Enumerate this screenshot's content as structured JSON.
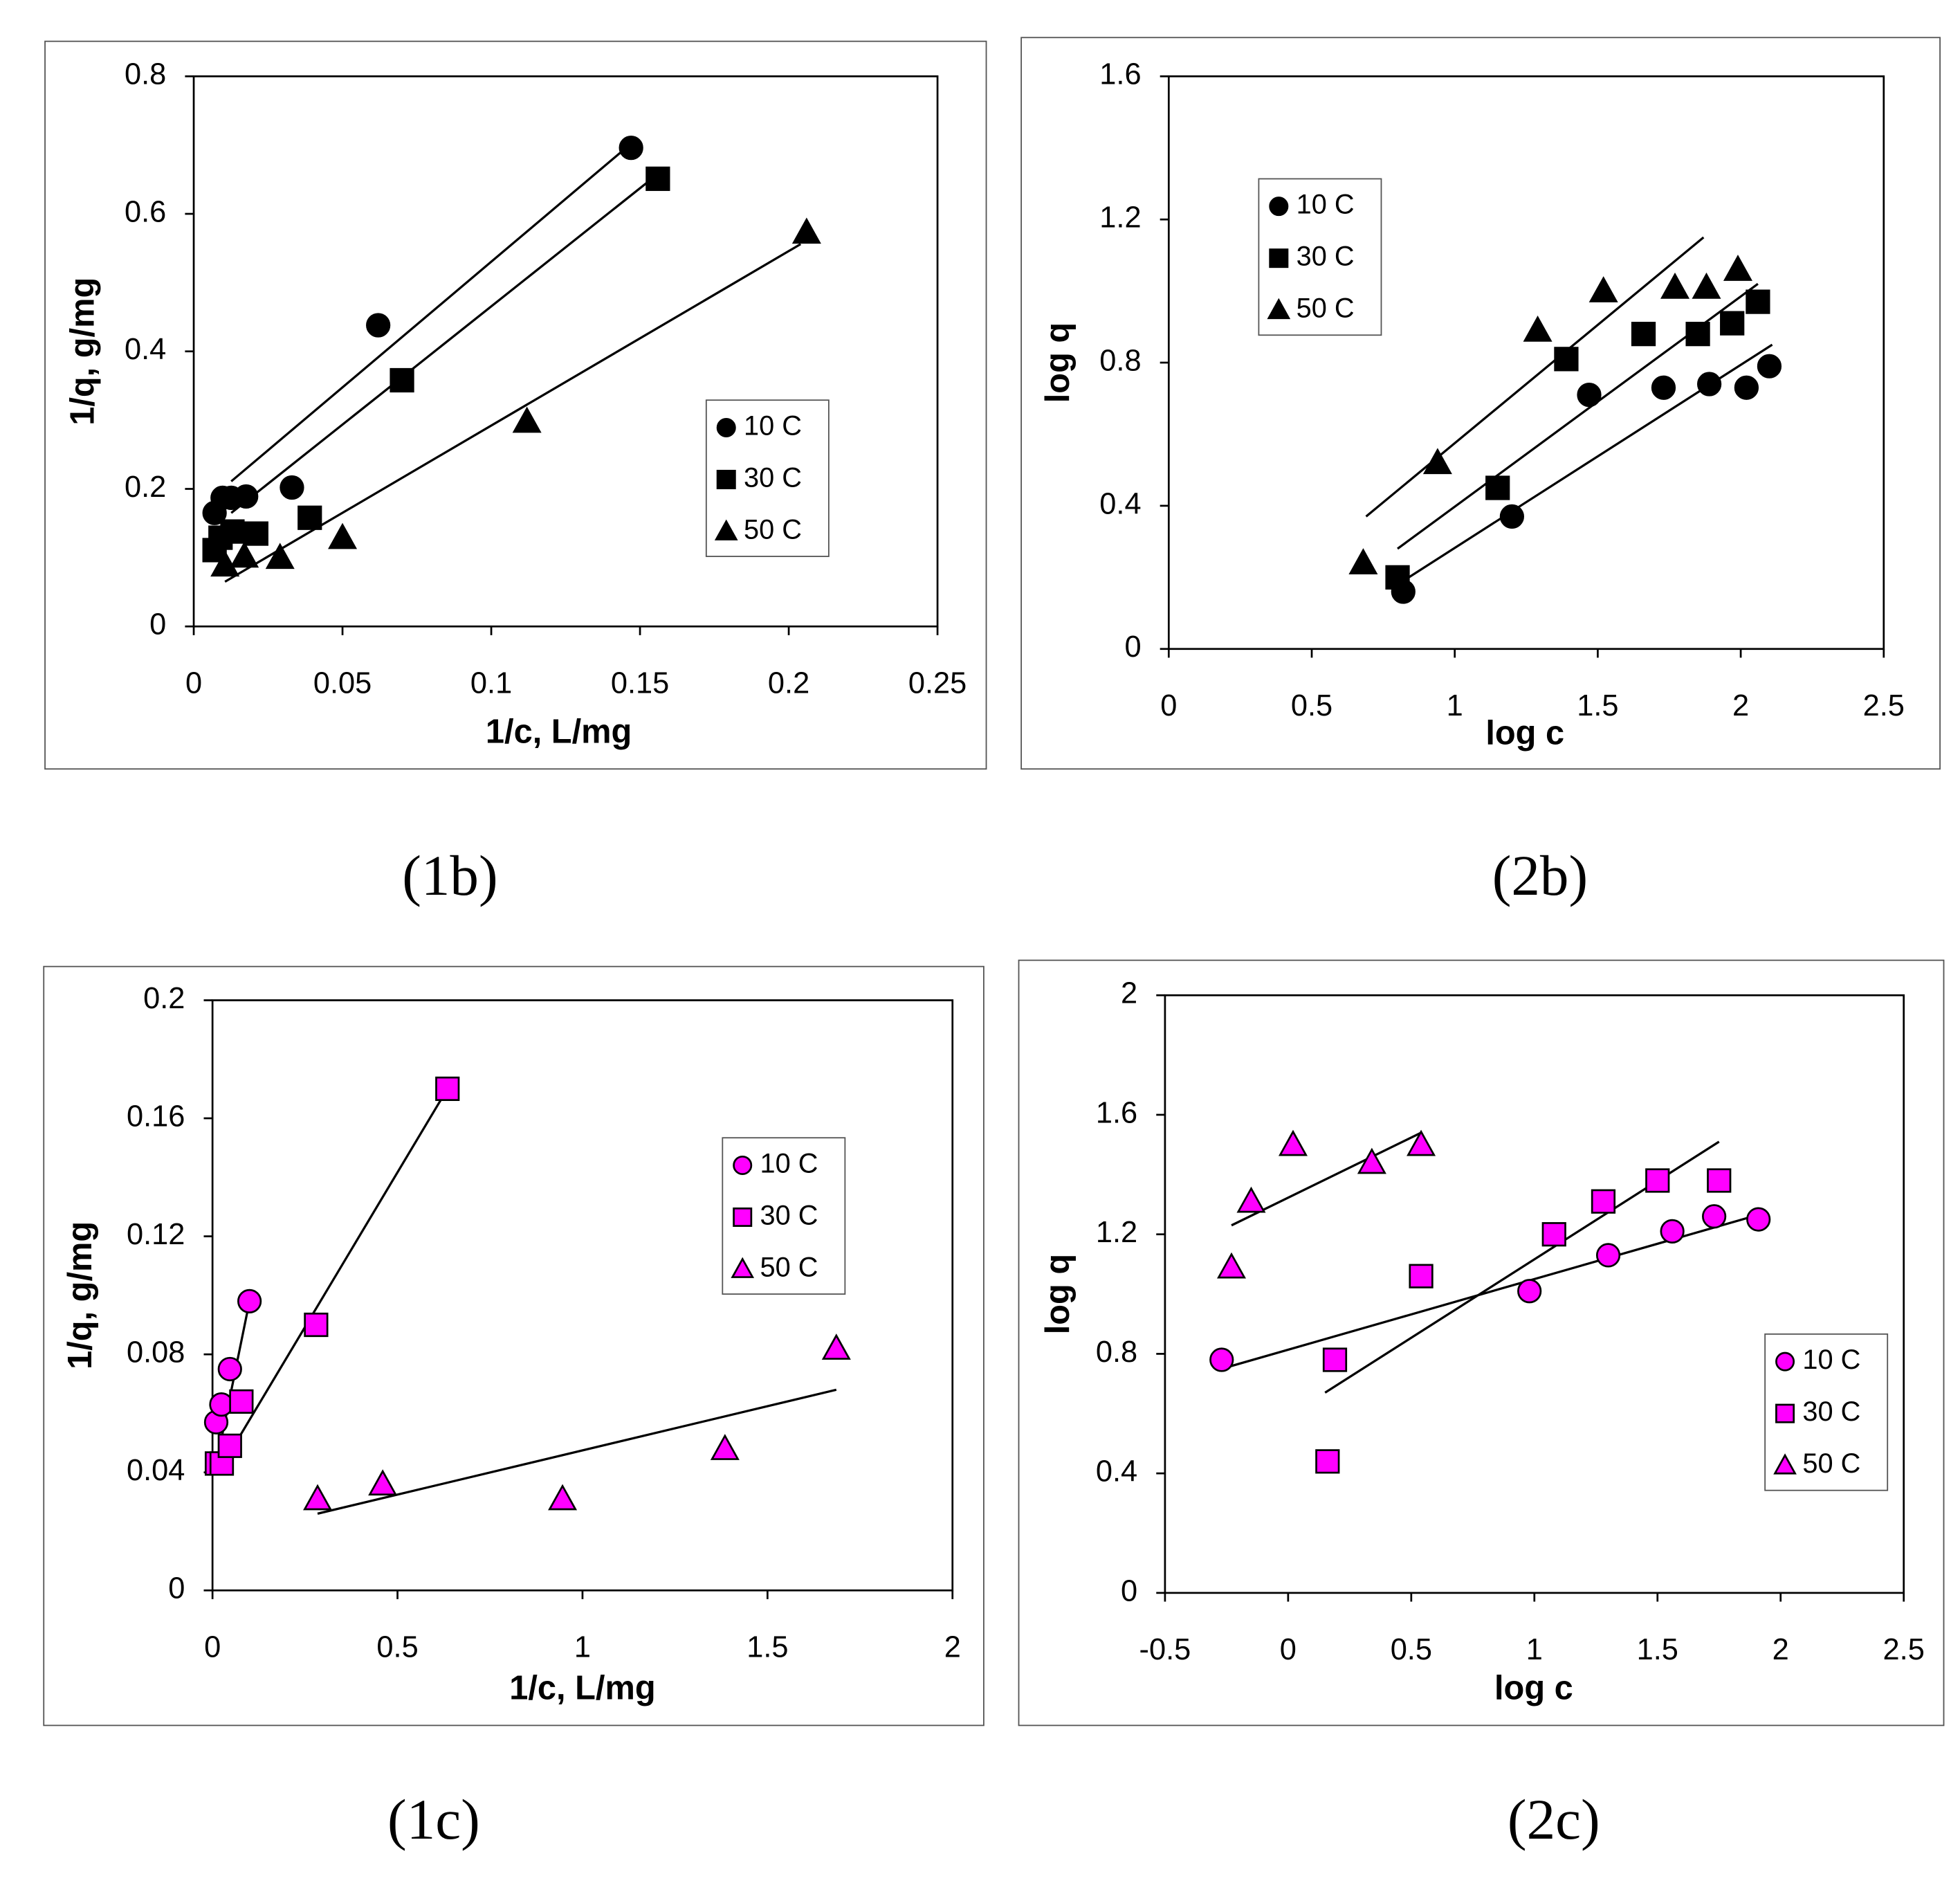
{
  "chart_data": [
    {
      "type": "scatter",
      "caption": "(1b)",
      "xlabel": "1/c, L/mg",
      "ylabel": "1/q, g/mg",
      "xlim": [
        0,
        0.25
      ],
      "ylim": [
        0,
        0.8
      ],
      "xticks": [
        0,
        0.05,
        0.1,
        0.15,
        0.2,
        0.25
      ],
      "yticks": [
        0,
        0.2,
        0.4,
        0.6,
        0.8
      ],
      "legend": "center right",
      "series": [
        {
          "name": "10 C",
          "marker": "circle",
          "color": "#000000",
          "edgecolor": "#000000",
          "x": [
            0.007,
            0.0097,
            0.0126,
            0.0176,
            0.033,
            0.062,
            0.147
          ],
          "values": [
            0.165,
            0.187,
            0.187,
            0.189,
            0.202,
            0.438,
            0.696
          ],
          "fit": {
            "x": [
              0.0126,
              0.1445
            ],
            "y": [
              0.211,
              0.693
            ]
          }
        },
        {
          "name": "30 C",
          "marker": "square",
          "color": "#000000",
          "edgecolor": "#000000",
          "x": [
            0.007,
            0.009,
            0.013,
            0.021,
            0.039,
            0.07,
            0.156
          ],
          "values": [
            0.111,
            0.129,
            0.138,
            0.135,
            0.158,
            0.358,
            0.651
          ],
          "fit": {
            "x": [
              0.0126,
              0.154
            ],
            "y": [
              0.165,
              0.651
            ]
          }
        },
        {
          "name": "50 C",
          "marker": "triangle",
          "color": "#000000",
          "edgecolor": "#000000",
          "x": [
            0.0105,
            0.017,
            0.029,
            0.05,
            0.112,
            0.206
          ],
          "values": [
            0.089,
            0.102,
            0.1,
            0.129,
            0.298,
            0.573
          ],
          "fit": {
            "x": [
              0.0105,
              0.204
            ],
            "y": [
              0.065,
              0.556
            ]
          }
        }
      ]
    },
    {
      "type": "scatter",
      "caption": "(2b)",
      "xlabel": "log c",
      "ylabel": "log q",
      "xlim": [
        0,
        2.5
      ],
      "ylim": [
        0,
        1.6
      ],
      "xticks": [
        0,
        0.5,
        1,
        1.5,
        2,
        2.5
      ],
      "yticks": [
        0,
        0.4,
        0.8,
        1.2,
        1.6
      ],
      "legend": "upper left",
      "series": [
        {
          "name": "10 C",
          "marker": "circle",
          "color": "#000000",
          "edgecolor": "#000000",
          "x": [
            0.82,
            1.2,
            1.47,
            1.73,
            1.89,
            2.02,
            2.1
          ],
          "values": [
            0.16,
            0.37,
            0.71,
            0.73,
            0.74,
            0.73,
            0.79
          ],
          "fit": {
            "x": [
              0.8,
              2.11
            ],
            "y": [
              0.18,
              0.85
            ]
          }
        },
        {
          "name": "30 C",
          "marker": "square",
          "color": "#000000",
          "edgecolor": "#000000",
          "x": [
            0.8,
            1.15,
            1.39,
            1.66,
            1.85,
            1.97,
            2.06
          ],
          "values": [
            0.2,
            0.45,
            0.81,
            0.88,
            0.88,
            0.91,
            0.97
          ],
          "fit": {
            "x": [
              0.8,
              2.06
            ],
            "y": [
              0.28,
              1.02
            ]
          }
        },
        {
          "name": "50 C",
          "marker": "triangle",
          "color": "#000000",
          "edgecolor": "#000000",
          "x": [
            0.68,
            0.94,
            1.29,
            1.52,
            1.77,
            1.88,
            1.99
          ],
          "values": [
            0.24,
            0.52,
            0.89,
            1.0,
            1.01,
            1.01,
            1.06
          ],
          "fit": {
            "x": [
              0.69,
              1.87
            ],
            "y": [
              0.37,
              1.15
            ]
          }
        }
      ]
    },
    {
      "type": "scatter",
      "caption": "(1c)",
      "xlabel": "1/c, L/mg",
      "ylabel": "1/q, g/mg",
      "xlim": [
        0,
        2
      ],
      "ylim": [
        0,
        0.2
      ],
      "xticks": [
        0,
        0.5,
        1,
        1.5,
        2
      ],
      "yticks": [
        0,
        0.04,
        0.08,
        0.12,
        0.16,
        0.2
      ],
      "legend": "upper right",
      "series": [
        {
          "name": "10 C",
          "marker": "circle",
          "color": "#ff00ff",
          "edgecolor": "#000000",
          "x": [
            0.01,
            0.024,
            0.047,
            0.1
          ],
          "values": [
            0.057,
            0.063,
            0.075,
            0.098
          ],
          "fit": {
            "x": [
              0.017,
              0.1
            ],
            "y": [
              0.047,
              0.098
            ]
          }
        },
        {
          "name": "30 C",
          "marker": "square",
          "color": "#ff00ff",
          "edgecolor": "#000000",
          "x": [
            0.012,
            0.025,
            0.047,
            0.078,
            0.28,
            0.635
          ],
          "values": [
            0.043,
            0.043,
            0.049,
            0.064,
            0.09,
            0.17
          ],
          "fit": {
            "x": [
              0.02,
              0.635
            ],
            "y": [
              0.041,
              0.17
            ]
          }
        },
        {
          "name": "50 C",
          "marker": "triangle",
          "color": "#ff00ff",
          "edgecolor": "#000000",
          "x": [
            0.284,
            0.46,
            0.946,
            1.385,
            1.686
          ],
          "values": [
            0.031,
            0.036,
            0.031,
            0.048,
            0.082
          ],
          "fit": {
            "x": [
              0.284,
              1.686
            ],
            "y": [
              0.026,
              0.068
            ]
          }
        }
      ]
    },
    {
      "type": "scatter",
      "caption": "(2c)",
      "xlabel": "log c",
      "ylabel": "log q",
      "xlim": [
        -0.5,
        2.5
      ],
      "ylim": [
        0,
        2
      ],
      "xticks": [
        -0.5,
        0,
        0.5,
        1,
        1.5,
        2,
        2.5
      ],
      "yticks": [
        0,
        0.4,
        0.8,
        1.2,
        1.6,
        2
      ],
      "legend": "lower right",
      "series": [
        {
          "name": "10 C",
          "marker": "circle",
          "color": "#ff00ff",
          "edgecolor": "#000000",
          "x": [
            -0.27,
            0.98,
            1.3,
            1.56,
            1.73,
            1.91
          ],
          "values": [
            0.78,
            1.01,
            1.13,
            1.21,
            1.26,
            1.25
          ],
          "fit": {
            "x": [
              -0.27,
              1.93
            ],
            "y": [
              0.75,
              1.27
            ]
          }
        },
        {
          "name": "30 C",
          "marker": "square",
          "color": "#ff00ff",
          "edgecolor": "#000000",
          "x": [
            0.19,
            0.16,
            0.54,
            1.08,
            1.28,
            1.5,
            1.75
          ],
          "values": [
            0.78,
            0.44,
            1.06,
            1.2,
            1.31,
            1.38,
            1.38
          ],
          "fit": {
            "x": [
              0.15,
              1.75
            ],
            "y": [
              0.67,
              1.51
            ]
          }
        },
        {
          "name": "50 C",
          "marker": "triangle",
          "color": "#ff00ff",
          "edgecolor": "#000000",
          "x": [
            -0.23,
            -0.15,
            0.02,
            0.34,
            0.54
          ],
          "values": [
            1.09,
            1.31,
            1.5,
            1.44,
            1.5
          ],
          "fit": {
            "x": [
              -0.23,
              0.54
            ],
            "y": [
              1.23,
              1.54
            ]
          }
        }
      ]
    }
  ]
}
